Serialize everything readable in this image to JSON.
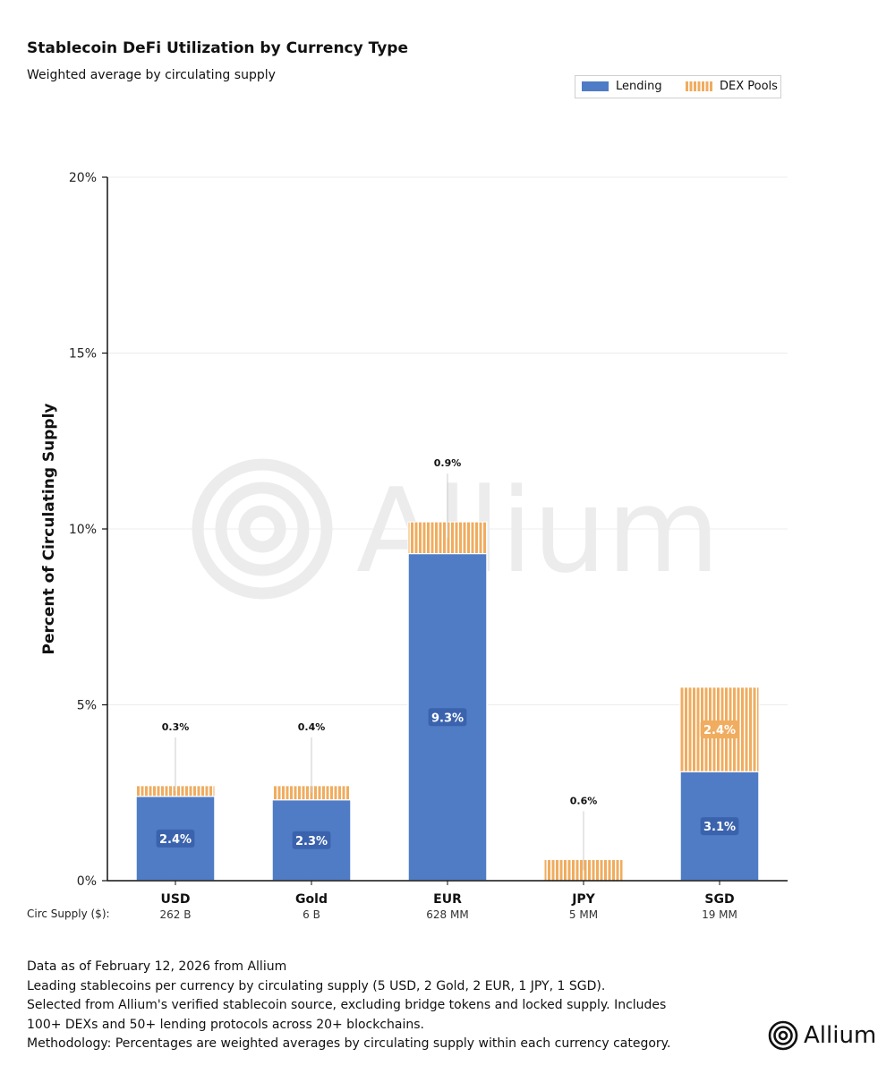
{
  "header": {
    "title": "Stablecoin DeFi Utilization by Currency Type",
    "subtitle": "Weighted average by circulating supply"
  },
  "legend": {
    "lending_label": "Lending",
    "dex_label": "DEX Pools"
  },
  "colors": {
    "lending": "#4f7cc5",
    "dex": "#f0ac5f",
    "label_bg": "#3b63ad"
  },
  "watermark": {
    "text": "Allium",
    "icon": "allium-rings-icon"
  },
  "chart_data": {
    "type": "bar",
    "stacked": true,
    "categories": [
      "USD",
      "Gold",
      "EUR",
      "JPY",
      "SGD"
    ],
    "series": [
      {
        "name": "Lending",
        "values": [
          2.4,
          2.3,
          9.3,
          0.0,
          3.1
        ],
        "labels": [
          "2.4%",
          "2.3%",
          "9.3%",
          "",
          "3.1%"
        ]
      },
      {
        "name": "DEX Pools",
        "values": [
          0.3,
          0.4,
          0.9,
          0.6,
          2.4
        ],
        "labels": [
          "0.3%",
          "0.4%",
          "0.9%",
          "0.6%",
          "2.4%"
        ]
      }
    ],
    "ylabel": "Percent of Circulating Supply",
    "ylim": [
      0,
      20
    ],
    "yticks": [
      0,
      5,
      10,
      15,
      20
    ],
    "ytick_labels": [
      "0%",
      "5%",
      "10%",
      "15%",
      "20%"
    ],
    "grid": true,
    "legend_position": "top-right",
    "secondary_axis": {
      "label": "Circ Supply ($):",
      "values": [
        "262 B",
        "6 B",
        "628 MM",
        "5 MM",
        "19 MM"
      ]
    }
  },
  "footer": {
    "lines": [
      "Data as of February 12, 2026 from Allium",
      "Leading stablecoins per currency by circulating supply (5 USD, 2 Gold, 2 EUR, 1 JPY, 1 SGD).",
      "Selected from Allium's verified stablecoin source, excluding bridge tokens and locked supply. Includes",
      "100+ DEXs and 50+ lending protocols across 20+ blockchains.",
      "Methodology: Percentages are weighted averages by circulating supply within each currency category."
    ]
  },
  "brand": {
    "text": "Allium",
    "icon": "allium-logo-icon"
  }
}
